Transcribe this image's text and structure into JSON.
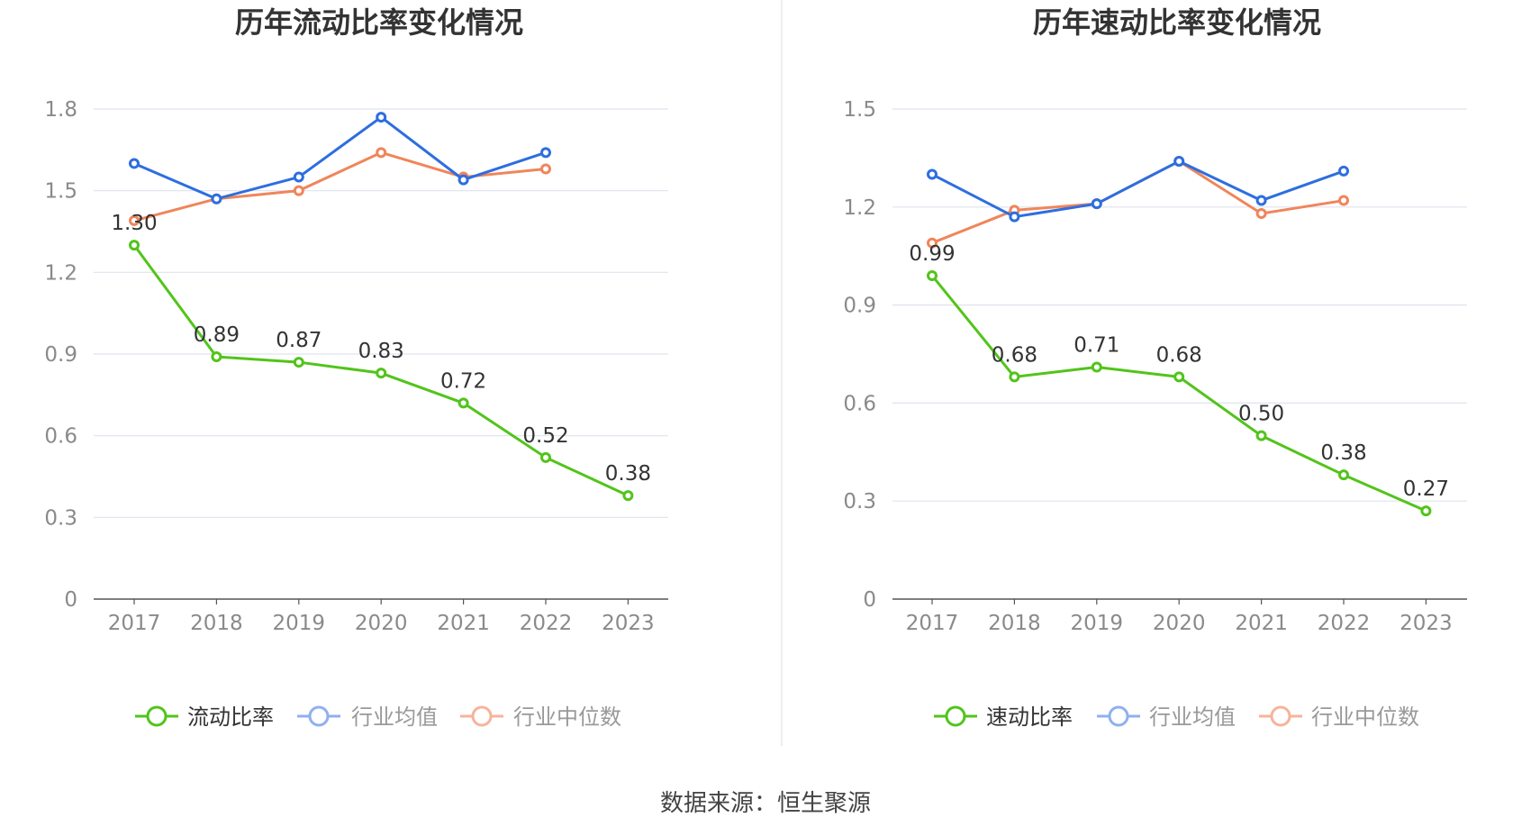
{
  "source_text": "数据来源：恒生聚源",
  "chart_data": [
    {
      "type": "line",
      "title": "历年流动比率变化情况",
      "categories": [
        "2017",
        "2018",
        "2019",
        "2020",
        "2021",
        "2022",
        "2023"
      ],
      "ylim": [
        0,
        1.8
      ],
      "yticks": [
        "0",
        "0.3",
        "0.6",
        "0.9",
        "1.2",
        "1.5",
        "1.8"
      ],
      "grid": true,
      "legend_position": "bottom",
      "series": [
        {
          "name": "流动比率",
          "color": "#52c41a",
          "values": [
            1.3,
            0.89,
            0.87,
            0.83,
            0.72,
            0.52,
            0.38
          ],
          "labels": [
            "1.30",
            "0.89",
            "0.87",
            "0.83",
            "0.72",
            "0.52",
            "0.38"
          ]
        },
        {
          "name": "行业均值",
          "color": "#2d6ee0",
          "values": [
            1.6,
            1.47,
            1.55,
            1.77,
            1.54,
            1.64,
            null
          ]
        },
        {
          "name": "行业中位数",
          "color": "#f0855a",
          "values": [
            1.39,
            1.47,
            1.5,
            1.64,
            1.55,
            1.58,
            null
          ]
        }
      ]
    },
    {
      "type": "line",
      "title": "历年速动比率变化情况",
      "categories": [
        "2017",
        "2018",
        "2019",
        "2020",
        "2021",
        "2022",
        "2023"
      ],
      "ylim": [
        0,
        1.5
      ],
      "yticks": [
        "0",
        "0.3",
        "0.6",
        "0.9",
        "1.2",
        "1.5"
      ],
      "grid": true,
      "legend_position": "bottom",
      "series": [
        {
          "name": "速动比率",
          "color": "#52c41a",
          "values": [
            0.99,
            0.68,
            0.71,
            0.68,
            0.5,
            0.38,
            0.27
          ],
          "labels": [
            "0.99",
            "0.68",
            "0.71",
            "0.68",
            "0.50",
            "0.38",
            "0.27"
          ]
        },
        {
          "name": "行业均值",
          "color": "#2d6ee0",
          "values": [
            1.3,
            1.17,
            1.21,
            1.34,
            1.22,
            1.31,
            null
          ]
        },
        {
          "name": "行业中位数",
          "color": "#f0855a",
          "values": [
            1.09,
            1.19,
            1.21,
            1.34,
            1.18,
            1.22,
            null
          ]
        }
      ]
    }
  ]
}
